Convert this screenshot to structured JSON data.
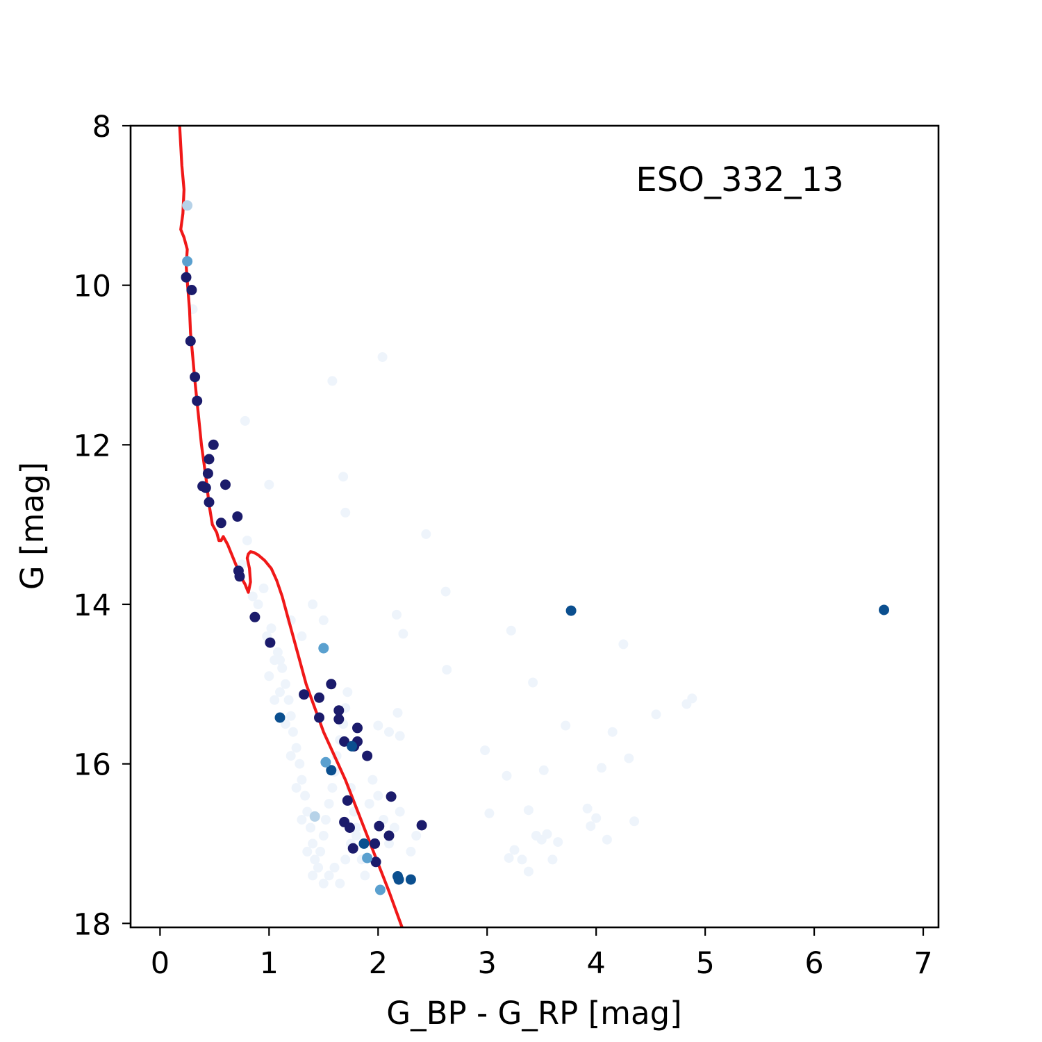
{
  "chart_data": {
    "type": "scatter",
    "title": "",
    "annotation": "ESO_332_13",
    "xlabel": "G_BP - G_RP [mag]",
    "ylabel": "G [mag]",
    "xlim": [
      -0.27,
      7.14
    ],
    "ylim": [
      18.05,
      8.0
    ],
    "y_inverted": true,
    "x_ticks": [
      0,
      1,
      2,
      3,
      4,
      5,
      6,
      7
    ],
    "x_tick_labels": [
      "0",
      "1",
      "2",
      "3",
      "4",
      "5",
      "6",
      "7"
    ],
    "y_ticks": [
      8,
      10,
      12,
      14,
      16,
      18
    ],
    "y_tick_labels": [
      "8",
      "10",
      "12",
      "14",
      "16",
      "18"
    ],
    "grid": false,
    "colors": {
      "isochrone": "#f01818",
      "member_high": "#1b1b6b",
      "member_mid": "#0b4f8f",
      "member_low": "#5aa0cf",
      "member_faint": "#b6d2e8",
      "field": "#eef4fb"
    },
    "series": [
      {
        "role": "isochrone",
        "type": "line",
        "x": [
          0.18,
          0.2,
          0.22,
          0.21,
          0.19,
          0.22,
          0.25,
          0.24,
          0.25,
          0.27,
          0.28,
          0.3,
          0.32,
          0.35,
          0.38,
          0.42,
          0.45,
          0.48,
          0.52,
          0.54,
          0.56,
          0.58,
          0.62,
          0.68,
          0.74,
          0.78,
          0.81,
          0.83,
          0.82,
          0.8,
          0.81,
          0.83,
          0.86,
          0.9,
          0.96,
          1.02,
          1.07,
          1.12,
          1.17,
          1.22,
          1.28,
          1.34,
          1.42,
          1.5,
          1.6,
          1.7,
          1.8,
          1.9,
          2.0,
          2.1,
          2.22
        ],
        "y": [
          8.0,
          8.5,
          8.8,
          9.1,
          9.3,
          9.4,
          9.55,
          9.75,
          9.95,
          10.3,
          10.6,
          10.9,
          11.2,
          11.6,
          12.0,
          12.4,
          12.75,
          13.0,
          13.1,
          13.2,
          13.2,
          13.15,
          13.25,
          13.45,
          13.65,
          13.75,
          13.85,
          13.72,
          13.55,
          13.42,
          13.37,
          13.34,
          13.35,
          13.38,
          13.45,
          13.55,
          13.7,
          13.9,
          14.15,
          14.4,
          14.7,
          15.0,
          15.3,
          15.6,
          15.9,
          16.2,
          16.55,
          16.9,
          17.25,
          17.6,
          18.05
        ]
      },
      {
        "role": "high-probability members",
        "x": [
          0.24,
          0.29,
          0.28,
          0.32,
          0.34,
          0.49,
          0.45,
          0.44,
          0.39,
          0.42,
          0.45,
          0.6,
          0.71,
          0.56,
          0.72,
          0.73,
          0.87,
          1.01,
          1.32,
          1.46,
          1.57,
          1.46,
          1.64,
          1.64,
          1.81,
          1.69,
          1.81,
          1.78,
          1.9,
          2.12,
          2.01,
          2.1,
          2.4,
          1.69,
          1.74,
          1.77,
          1.97,
          1.98,
          1.72
        ],
        "y": [
          9.9,
          10.06,
          10.7,
          11.15,
          11.45,
          12.0,
          12.18,
          12.36,
          12.52,
          12.54,
          12.72,
          12.5,
          12.9,
          12.98,
          13.58,
          13.65,
          14.16,
          14.48,
          15.13,
          15.17,
          15.0,
          15.42,
          15.33,
          15.44,
          15.55,
          15.72,
          15.72,
          15.78,
          15.9,
          16.41,
          16.78,
          16.9,
          16.77,
          16.73,
          16.8,
          17.06,
          17.0,
          17.23,
          16.46
        ]
      },
      {
        "role": "medium-probability members",
        "x": [
          3.77,
          6.64,
          1.1,
          1.57,
          1.76,
          1.87,
          2.18,
          2.19,
          2.3
        ],
        "y": [
          14.08,
          14.07,
          15.42,
          16.08,
          15.78,
          17.0,
          17.41,
          17.45,
          17.45
        ]
      },
      {
        "role": "low-probability members",
        "x": [
          0.25,
          1.5,
          1.52,
          1.9,
          2.02
        ],
        "y": [
          9.7,
          14.55,
          15.98,
          17.18,
          17.58
        ]
      },
      {
        "role": "faint members",
        "x": [
          0.25,
          1.42
        ],
        "y": [
          9.0,
          16.66
        ]
      },
      {
        "role": "field stars",
        "x": [
          0.3,
          1.02,
          1.08,
          1.12,
          1.15,
          1.18,
          1.2,
          1.22,
          1.25,
          1.28,
          1.3,
          1.33,
          1.35,
          1.38,
          1.4,
          1.42,
          1.45,
          1.47,
          1.5,
          1.52,
          1.55,
          1.58,
          1.6,
          1.62,
          1.65,
          1.68,
          1.7,
          1.72,
          1.75,
          1.78,
          1.8,
          1.85,
          1.88,
          1.92,
          1.95,
          2.0,
          2.05,
          2.1,
          2.15,
          2.2,
          2.3,
          2.35,
          0.98,
          1.05,
          1.1,
          1.15,
          1.2,
          1.25,
          1.3,
          1.35,
          1.4,
          1.45,
          1.5,
          1.55,
          1.6,
          1.65,
          1.7,
          1.75,
          1.8,
          0.75,
          0.8,
          0.85,
          0.9,
          0.95,
          1.0,
          1.05,
          1.1,
          1.2,
          1.3,
          1.4,
          1.5,
          2.04,
          1.58,
          0.78,
          1.0,
          1.68,
          1.7,
          2.44,
          2.62,
          2.17,
          2.23,
          2.63,
          2.18,
          2.1,
          2.2,
          2.0,
          3.22,
          3.42,
          2.98,
          3.02,
          3.18,
          3.25,
          3.32,
          3.38,
          3.45,
          3.5,
          3.55,
          3.6,
          3.65,
          3.92,
          3.95,
          4.0,
          4.05,
          4.1,
          4.15,
          4.25,
          4.3,
          4.35,
          4.55,
          4.83,
          4.88,
          3.52,
          3.72,
          3.38,
          3.2
        ],
        "y": [
          10.3,
          14.3,
          14.6,
          14.8,
          15.0,
          15.2,
          15.4,
          15.6,
          15.8,
          16.0,
          16.2,
          16.4,
          16.6,
          16.8,
          17.0,
          17.2,
          17.3,
          17.1,
          16.9,
          16.7,
          16.5,
          16.3,
          16.1,
          15.9,
          15.7,
          15.5,
          15.3,
          15.1,
          16.3,
          16.6,
          16.9,
          17.2,
          17.4,
          16.5,
          16.2,
          16.4,
          16.7,
          17.0,
          16.8,
          16.6,
          17.1,
          16.9,
          14.4,
          14.7,
          15.1,
          15.5,
          15.9,
          16.3,
          16.7,
          17.1,
          17.4,
          17.3,
          17.5,
          17.4,
          17.3,
          17.5,
          17.2,
          17.0,
          16.8,
          13.5,
          13.2,
          13.9,
          14.0,
          13.8,
          14.9,
          15.2,
          14.7,
          14.2,
          14.4,
          14.0,
          14.2,
          10.9,
          11.2,
          11.7,
          12.5,
          12.4,
          12.85,
          13.12,
          13.84,
          14.13,
          14.37,
          14.82,
          15.36,
          15.6,
          15.65,
          15.52,
          14.33,
          14.98,
          15.83,
          16.62,
          16.15,
          17.08,
          17.2,
          17.35,
          16.9,
          16.95,
          16.88,
          17.2,
          16.98,
          16.56,
          16.78,
          16.68,
          16.05,
          16.95,
          15.6,
          14.5,
          15.93,
          16.72,
          15.38,
          15.25,
          15.18,
          16.08,
          15.52,
          16.58,
          17.18
        ]
      }
    ]
  }
}
